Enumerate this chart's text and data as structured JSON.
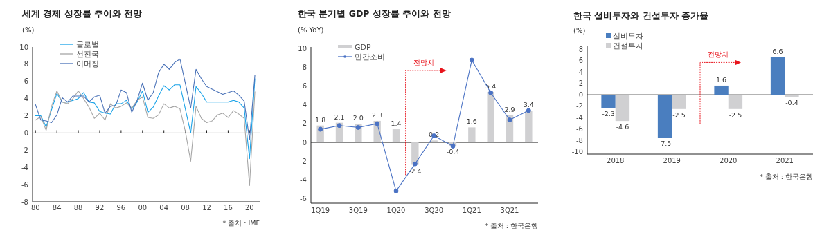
{
  "chart_data": [
    {
      "type": "line",
      "title": "세계 경제 성장률 추이와 전망",
      "ylabel": "(%)",
      "x": [
        1980,
        1981,
        1982,
        1983,
        1984,
        1985,
        1986,
        1987,
        1988,
        1989,
        1990,
        1991,
        1992,
        1993,
        1994,
        1995,
        1996,
        1997,
        1998,
        1999,
        2000,
        2001,
        2002,
        2003,
        2004,
        2005,
        2006,
        2007,
        2008,
        2009,
        2010,
        2011,
        2012,
        2013,
        2014,
        2015,
        2016,
        2017,
        2018,
        2019,
        2020,
        2021
      ],
      "series": [
        {
          "name": "글로벌",
          "color": "#1aa3e8",
          "values": [
            2.0,
            2.0,
            0.7,
            2.7,
            4.6,
            3.6,
            3.6,
            3.8,
            4.0,
            4.7,
            3.6,
            3.5,
            2.5,
            2.3,
            2.2,
            3.4,
            3.4,
            3.8,
            2.8,
            3.6,
            4.9,
            2.4,
            3.0,
            4.3,
            5.5,
            5.0,
            5.6,
            5.6,
            2.8,
            0.0,
            5.4,
            4.6,
            3.6,
            3.6,
            3.6,
            3.6,
            3.6,
            3.8,
            3.6,
            2.9,
            -3.0,
            6.3
          ]
        },
        {
          "name": "선진국",
          "color": "#a6a6a6",
          "values": [
            1.5,
            1.9,
            0.3,
            3.1,
            4.9,
            3.6,
            3.4,
            4.0,
            4.9,
            4.0,
            3.0,
            1.7,
            2.3,
            1.5,
            3.4,
            2.9,
            3.1,
            3.5,
            2.9,
            3.8,
            4.2,
            1.8,
            1.7,
            2.1,
            3.4,
            2.9,
            3.1,
            2.8,
            0.2,
            -3.3,
            3.1,
            1.7,
            1.2,
            1.4,
            2.1,
            2.3,
            1.8,
            2.6,
            2.2,
            1.7,
            -6.1,
            4.8
          ]
        },
        {
          "name": "이머징",
          "color": "#4a72b8",
          "values": [
            3.3,
            1.5,
            1.4,
            1.2,
            2.1,
            4.1,
            3.6,
            4.3,
            4.3,
            4.3,
            3.6,
            4.2,
            4.4,
            2.3,
            3.1,
            3.2,
            5.0,
            4.7,
            2.4,
            3.8,
            5.8,
            3.8,
            4.7,
            7.0,
            8.0,
            7.4,
            8.2,
            8.6,
            5.8,
            2.9,
            7.4,
            6.3,
            5.4,
            5.1,
            4.8,
            4.5,
            4.7,
            4.9,
            4.4,
            3.7,
            -0.8,
            6.7
          ]
        }
      ],
      "xlim": [
        1979.45,
        2021.9
      ],
      "ylim": [
        -8,
        10
      ],
      "xticks": [
        {
          "value": 1980,
          "label": "80"
        },
        {
          "value": 1984,
          "label": "84"
        },
        {
          "value": 1988,
          "label": "88"
        },
        {
          "value": 1992,
          "label": "92"
        },
        {
          "value": 1996,
          "label": "96"
        },
        {
          "value": 2000,
          "label": "00"
        },
        {
          "value": 2004,
          "label": "04"
        },
        {
          "value": 2008,
          "label": "08"
        },
        {
          "value": 2012,
          "label": "12"
        },
        {
          "value": 2016,
          "label": "16"
        },
        {
          "value": 2020,
          "label": "20"
        }
      ],
      "yticks": [
        -8,
        -6,
        -4,
        -2,
        0,
        2,
        4,
        6,
        8,
        10
      ],
      "legend": "top left",
      "marker": "none",
      "annotations": [
        "* 출처 : IMF"
      ]
    },
    {
      "type": "bar",
      "title": "한국 분기별 GDP 성장률 추이와 전망",
      "ylabel": "(% YoY)",
      "categories": [
        "1Q19",
        null,
        "3Q19",
        null,
        "1Q20",
        null,
        "3Q20",
        null,
        "1Q21",
        null,
        "3Q21",
        null
      ],
      "series": [
        {
          "name": "GDP",
          "color": "#d0d0d2",
          "values": [
            1.8,
            2.1,
            2.0,
            2.3,
            1.4,
            -2.4,
            0.2,
            -0.4,
            1.6,
            5.4,
            2.9,
            3.4
          ],
          "value_labels": [
            "1.8",
            "2.1",
            "2.0",
            "2.3",
            "1.4",
            "-2.4",
            "0.2",
            "-0.4",
            "1.6",
            "5.4",
            "2.9",
            "3.4"
          ]
        },
        {
          "name": "민간소비",
          "type": "line",
          "color": "#4a72c4",
          "values": [
            1.4,
            1.8,
            1.6,
            2.0,
            -5.2,
            -2.3,
            0.7,
            -0.4,
            8.8,
            5.3,
            2.4,
            3.4
          ]
        }
      ],
      "ylim": [
        -6.5,
        10.2
      ],
      "yticks": [
        -6,
        -4,
        -2,
        0,
        2,
        4,
        6,
        8,
        10
      ],
      "marker": "circle",
      "legend": "top left",
      "annotations": [
        "전망치",
        "* 출처 : 한국은행"
      ]
    },
    {
      "type": "bar",
      "title": "한국 설비투자와 건설투자 증가율",
      "ylabel": "(%)",
      "categories": [
        "2018",
        "2019",
        "2020",
        "2021"
      ],
      "series": [
        {
          "name": "설비투자",
          "color": "#4a7ebf",
          "values": [
            -2.3,
            -7.5,
            1.6,
            6.6
          ]
        },
        {
          "name": "건설투자",
          "color": "#d0d0d2",
          "values": [
            -4.6,
            -2.5,
            -2.5,
            -0.4
          ]
        }
      ],
      "data_labels": true,
      "ylim": [
        -10.4,
        8.5
      ],
      "yticks": [
        -10,
        -8,
        -6,
        -4,
        -2,
        0,
        2,
        4,
        6,
        8
      ],
      "legend": "top left",
      "annotations": [
        "전망치",
        "* 출처 : 한국은행"
      ]
    }
  ]
}
